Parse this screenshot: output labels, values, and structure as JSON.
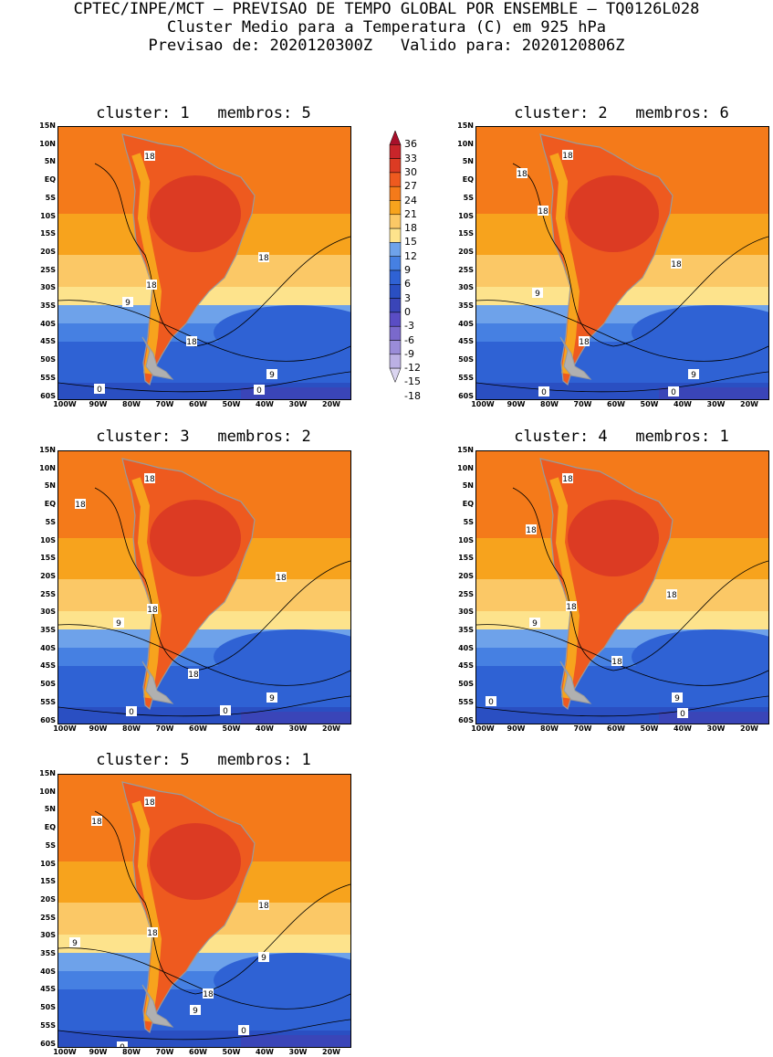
{
  "header": {
    "line1": "CPTEC/INPE/MCT — PREVISAO DE TEMPO GLOBAL POR ENSEMBLE — TQ0126L028",
    "line2": "Cluster Medio para a Temperatura (C) em 925 hPa",
    "line3": "Previsao de: 2020120300Z   Valido para: 2020120806Z"
  },
  "axes": {
    "lat_labels": [
      "15N",
      "10N",
      "5N",
      "EQ",
      "5S",
      "10S",
      "15S",
      "20S",
      "25S",
      "30S",
      "35S",
      "40S",
      "45S",
      "50S",
      "55S",
      "60S"
    ],
    "lon_labels": [
      "100W",
      "90W",
      "80W",
      "70W",
      "60W",
      "50W",
      "40W",
      "30W",
      "20W"
    ]
  },
  "colorbar": {
    "labels": [
      "36",
      "33",
      "30",
      "27",
      "24",
      "21",
      "18",
      "15",
      "12",
      "9",
      "6",
      "3",
      "0",
      "-3",
      "-6",
      "-9",
      "-12",
      "-15",
      "-18"
    ],
    "colors": [
      "#a8102a",
      "#c8252a",
      "#dc3b23",
      "#ee5a1f",
      "#f47a1a",
      "#f7a31d",
      "#fbc866",
      "#fde38c",
      "#6ea2ea",
      "#4680e2",
      "#2f62d4",
      "#2a4fc2",
      "#3a45b8",
      "#5a4dc4",
      "#7a69cc",
      "#9a8cd8",
      "#bbb0e4",
      "#dbd5f0"
    ]
  },
  "panels": [
    {
      "title": "cluster: 1   membros: 5",
      "contour_labels": [
        "18",
        "18",
        "18",
        "18",
        "9",
        "9",
        "0",
        "0"
      ]
    },
    {
      "title": "cluster: 2   membros: 6",
      "contour_labels": [
        "18",
        "18",
        "18",
        "18",
        "18",
        "9",
        "9",
        "0",
        "0"
      ]
    },
    {
      "title": "cluster: 3   membros: 2",
      "contour_labels": [
        "18",
        "18",
        "18",
        "18",
        "18",
        "9",
        "9",
        "0",
        "0"
      ]
    },
    {
      "title": "cluster: 4   membros: 1",
      "contour_labels": [
        "18",
        "18",
        "18",
        "18",
        "18",
        "9",
        "9",
        "0",
        "0"
      ]
    },
    {
      "title": "cluster: 5   membros: 1",
      "contour_labels": [
        "18",
        "18",
        "18",
        "18",
        "18",
        "9",
        "9",
        "9",
        "0",
        "0"
      ]
    }
  ]
}
